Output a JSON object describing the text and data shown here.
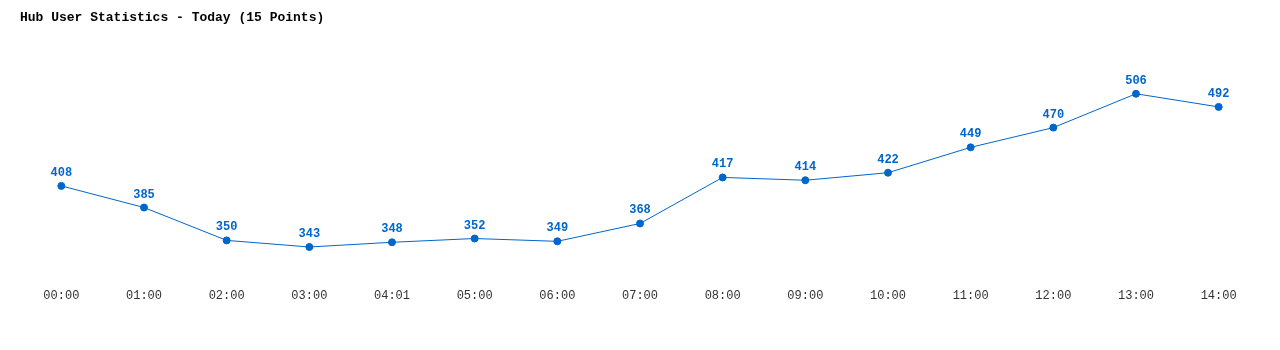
{
  "chart_data": {
    "type": "line",
    "title": "Hub User Statistics - Today (15 Points)",
    "categories": [
      "00:00",
      "01:00",
      "02:00",
      "03:00",
      "04:01",
      "05:00",
      "06:00",
      "07:00",
      "08:00",
      "09:00",
      "10:00",
      "11:00",
      "12:00",
      "13:00",
      "14:00"
    ],
    "series": [
      {
        "color": "#0066cc",
        "values": [
          408,
          385,
          350,
          343,
          348,
          352,
          349,
          368,
          417,
          414,
          422,
          449,
          470,
          506,
          492
        ]
      }
    ],
    "data_labels": true,
    "grid": false,
    "legend": false,
    "marker": "circle",
    "line_style": "solid",
    "tick_labels": "x"
  }
}
